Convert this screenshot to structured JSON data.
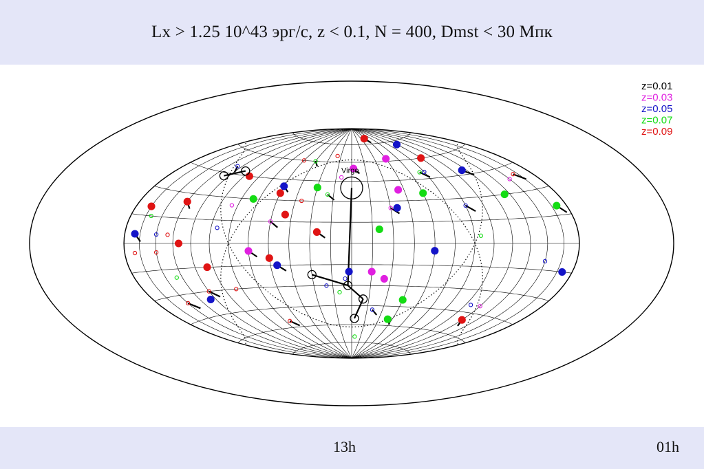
{
  "title": "Lx > 1.25 10^43 эрг/с,  z < 0.1, N = 400, Dmst < 30 Мпк",
  "footer": {
    "center_label": "13h",
    "right_label": "01h"
  },
  "chart_data": {
    "type": "scatter",
    "projection": "aitoff-hammer all-sky",
    "grid": true,
    "legend_placement": "top-right",
    "annotations": [
      {
        "text": "Virgo"
      }
    ],
    "legend": [
      {
        "label": "z=0.01",
        "color": "#000000"
      },
      {
        "label": "z=0.03",
        "color": "#e020e0"
      },
      {
        "label": "z=0.05",
        "color": "#1414c8"
      },
      {
        "label": "z=0.07",
        "color": "#14dc14"
      },
      {
        "label": "z=0.09",
        "color": "#e01414"
      }
    ],
    "hub_points": [
      {
        "lon": 0,
        "lat": 40,
        "z": 0.01
      },
      {
        "lon": -30,
        "lat": -22,
        "z": 0.01
      },
      {
        "lon": 10,
        "lat": -40,
        "z": 0.01
      },
      {
        "lon": -3,
        "lat": -30,
        "z": 0.01
      },
      {
        "lon": 3,
        "lat": -55,
        "z": 0.01
      },
      {
        "lon": -110,
        "lat": 48,
        "z": 0.01
      },
      {
        "lon": -125,
        "lat": 43,
        "z": 0.01
      }
    ],
    "connections": [
      [
        0,
        -3,
        -30
      ],
      [
        -3,
        -30,
        -30,
        -22
      ],
      [
        -3,
        -30,
        10,
        -40
      ],
      [
        10,
        -40,
        3,
        -55
      ],
      [
        -110,
        48,
        -125,
        43
      ]
    ],
    "points": [
      {
        "lon": 2,
        "lat": 55,
        "z": 0.03
      },
      {
        "lon": -10,
        "lat": 48,
        "z": 0.03
      },
      {
        "lon": 40,
        "lat": 38,
        "z": 0.03
      },
      {
        "lon": 30,
        "lat": 25,
        "z": 0.03
      },
      {
        "lon": 25,
        "lat": -25,
        "z": 0.03
      },
      {
        "lon": -95,
        "lat": 25,
        "z": 0.03
      },
      {
        "lon": -75,
        "lat": -5,
        "z": 0.03
      },
      {
        "lon": 120,
        "lat": -40,
        "z": 0.03
      },
      {
        "lon": 45,
        "lat": 62,
        "z": 0.03
      },
      {
        "lon": -60,
        "lat": 15,
        "z": 0.03
      },
      {
        "lon": 15,
        "lat": -20,
        "z": 0.03
      },
      {
        "lon": 150,
        "lat": 38,
        "z": 0.03
      },
      {
        "lon": 115,
        "lat": 48,
        "z": 0.05
      },
      {
        "lon": -5,
        "lat": -25,
        "z": 0.05
      },
      {
        "lon": -2,
        "lat": -20,
        "z": 0.05
      },
      {
        "lon": 20,
        "lat": -48,
        "z": 0.05
      },
      {
        "lon": 35,
        "lat": 25,
        "z": 0.05
      },
      {
        "lon": -100,
        "lat": 10,
        "z": 0.05
      },
      {
        "lon": -55,
        "lat": -15,
        "z": 0.05
      },
      {
        "lon": -150,
        "lat": 5,
        "z": 0.05
      },
      {
        "lon": 90,
        "lat": 72,
        "z": 0.05
      },
      {
        "lon": 90,
        "lat": 25,
        "z": 0.05
      },
      {
        "lon": -125,
        "lat": -35,
        "z": 0.05
      },
      {
        "lon": 150,
        "lat": -10,
        "z": 0.05
      },
      {
        "lon": -60,
        "lat": 40,
        "z": 0.05
      },
      {
        "lon": 110,
        "lat": -40,
        "z": 0.05
      },
      {
        "lon": 60,
        "lat": -5,
        "z": 0.05
      },
      {
        "lon": -125,
        "lat": 50,
        "z": 0.05
      },
      {
        "lon": 170,
        "lat": -15,
        "z": 0.05
      },
      {
        "lon": 75,
        "lat": 50,
        "z": 0.05
      },
      {
        "lon": -170,
        "lat": 5,
        "z": 0.05
      },
      {
        "lon": -20,
        "lat": -30,
        "z": 0.05
      },
      {
        "lon": 130,
        "lat": 30,
        "z": 0.07
      },
      {
        "lon": -20,
        "lat": 35,
        "z": 0.07
      },
      {
        "lon": -30,
        "lat": 40,
        "z": 0.07
      },
      {
        "lon": -10,
        "lat": -35,
        "z": 0.07
      },
      {
        "lon": 40,
        "lat": -55,
        "z": 0.07
      },
      {
        "lon": 5,
        "lat": -70,
        "z": 0.07
      },
      {
        "lon": 20,
        "lat": 10,
        "z": 0.07
      },
      {
        "lon": 70,
        "lat": 50,
        "z": 0.07
      },
      {
        "lon": -80,
        "lat": 30,
        "z": 0.07
      },
      {
        "lon": 95,
        "lat": 5,
        "z": 0.07
      },
      {
        "lon": 170,
        "lat": 20,
        "z": 0.07
      },
      {
        "lon": -160,
        "lat": 15,
        "z": 0.07
      },
      {
        "lon": 45,
        "lat": -40,
        "z": 0.07
      },
      {
        "lon": -45,
        "lat": 60,
        "z": 0.07
      },
      {
        "lon": 60,
        "lat": 35,
        "z": 0.07
      },
      {
        "lon": -140,
        "lat": -20,
        "z": 0.07
      },
      {
        "lon": -135,
        "lat": 25,
        "z": 0.09
      },
      {
        "lon": -140,
        "lat": 5,
        "z": 0.09
      },
      {
        "lon": -130,
        "lat": 0,
        "z": 0.09
      },
      {
        "lon": -120,
        "lat": -30,
        "z": 0.09
      },
      {
        "lon": -60,
        "lat": 35,
        "z": 0.09
      },
      {
        "lon": -40,
        "lat": 30,
        "z": 0.09
      },
      {
        "lon": -25,
        "lat": 8,
        "z": 0.09
      },
      {
        "lon": -95,
        "lat": -30,
        "z": 0.09
      },
      {
        "lon": -60,
        "lat": -10,
        "z": 0.09
      },
      {
        "lon": -70,
        "lat": -55,
        "z": 0.09
      },
      {
        "lon": -165,
        "lat": 20,
        "z": 0.09
      },
      {
        "lon": -150,
        "lat": -5,
        "z": 0.09
      },
      {
        "lon": 40,
        "lat": 80,
        "z": 0.09
      },
      {
        "lon": -20,
        "lat": 65,
        "z": 0.09
      },
      {
        "lon": 90,
        "lat": 60,
        "z": 0.09
      },
      {
        "lon": 160,
        "lat": 40,
        "z": 0.09
      },
      {
        "lon": -100,
        "lat": 45,
        "z": 0.09
      },
      {
        "lon": -60,
        "lat": 60,
        "z": 0.09
      },
      {
        "lon": 120,
        "lat": -50,
        "z": 0.09
      },
      {
        "lon": -170,
        "lat": -5,
        "z": 0.09
      },
      {
        "lon": -50,
        "lat": 20,
        "z": 0.09
      },
      {
        "lon": -150,
        "lat": -35,
        "z": 0.09
      },
      {
        "lon": -110,
        "lat": -15,
        "z": 0.09
      }
    ]
  }
}
